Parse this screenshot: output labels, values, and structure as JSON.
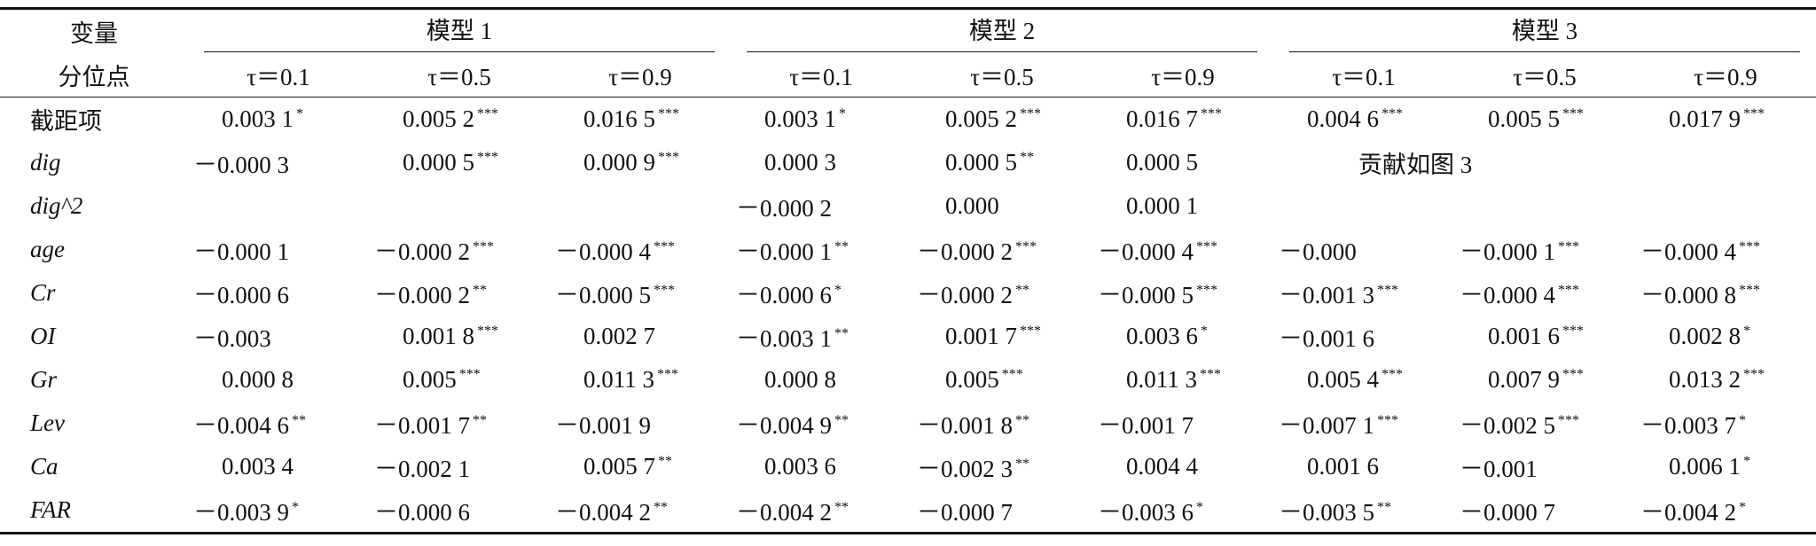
{
  "header": {
    "var": "变量",
    "quantile": "分位点",
    "models": [
      "模型 1",
      "模型 2",
      "模型 3"
    ],
    "taus": [
      "τ＝0.1",
      "τ＝0.5",
      "τ＝0.9"
    ]
  },
  "rows": [
    {
      "label": "截距项",
      "italic": false,
      "cells": [
        {
          "text": "0.003 1",
          "stars": "*"
        },
        {
          "text": "0.005 2",
          "stars": "***"
        },
        {
          "text": "0.016 5",
          "stars": "***"
        },
        {
          "text": "0.003 1",
          "stars": "*"
        },
        {
          "text": "0.005 2",
          "stars": "***"
        },
        {
          "text": "0.016 7",
          "stars": "***"
        },
        {
          "text": "0.004 6",
          "stars": "***"
        },
        {
          "text": "0.005 5",
          "stars": "***"
        },
        {
          "text": "0.017 9",
          "stars": "***"
        }
      ]
    },
    {
      "label": "dig",
      "italic": true,
      "cells": [
        "－0.000 3",
        {
          "text": "0.000 5",
          "stars": "***"
        },
        {
          "text": "0.000 9",
          "stars": "***"
        },
        "0.000 3",
        {
          "text": "0.000 5",
          "stars": "**"
        },
        "0.000 5"
      ],
      "span": "贡献如图 3"
    },
    {
      "label": "dig^2",
      "italic": true,
      "cells": [
        null,
        null,
        null,
        "－0.000 2",
        "0.000",
        "0.000 1",
        null,
        null,
        null
      ]
    },
    {
      "label": "age",
      "italic": true,
      "cells": [
        "－0.000 1",
        {
          "text": "－0.000 2",
          "stars": "***"
        },
        {
          "text": "－0.000 4",
          "stars": "***"
        },
        {
          "text": "－0.000 1",
          "stars": "**"
        },
        {
          "text": "－0.000 2",
          "stars": "***"
        },
        {
          "text": "－0.000 4",
          "stars": "***"
        },
        "－0.000",
        {
          "text": "－0.000 1",
          "stars": "***"
        },
        {
          "text": "－0.000 4",
          "stars": "***"
        }
      ]
    },
    {
      "label": "Cr",
      "italic": true,
      "cells": [
        "－0.000 6",
        {
          "text": "－0.000 2",
          "stars": "**"
        },
        {
          "text": "－0.000 5",
          "stars": "***"
        },
        {
          "text": "－0.000 6",
          "stars": "*"
        },
        {
          "text": "－0.000 2",
          "stars": "**"
        },
        {
          "text": "－0.000 5",
          "stars": "***"
        },
        {
          "text": "－0.001 3",
          "stars": "***"
        },
        {
          "text": "－0.000 4",
          "stars": "***"
        },
        {
          "text": "－0.000 8",
          "stars": "***"
        }
      ]
    },
    {
      "label": "OI",
      "italic": true,
      "cells": [
        "－0.003",
        {
          "text": "0.001 8",
          "stars": "***"
        },
        "0.002 7",
        {
          "text": "－0.003 1",
          "stars": "**"
        },
        {
          "text": "0.001 7",
          "stars": "***"
        },
        {
          "text": "0.003 6",
          "stars": "*"
        },
        "－0.001 6",
        {
          "text": "0.001 6",
          "stars": "***"
        },
        {
          "text": "0.002 8",
          "stars": "*"
        }
      ]
    },
    {
      "label": "Gr",
      "italic": true,
      "cells": [
        "0.000 8",
        {
          "text": "0.005",
          "stars": "***"
        },
        {
          "text": "0.011 3",
          "stars": "***"
        },
        "0.000 8",
        {
          "text": "0.005",
          "stars": "***"
        },
        {
          "text": "0.011 3",
          "stars": "***"
        },
        {
          "text": "0.005 4",
          "stars": "***"
        },
        {
          "text": "0.007 9",
          "stars": "***"
        },
        {
          "text": "0.013 2",
          "stars": "***"
        }
      ]
    },
    {
      "label": "Lev",
      "italic": true,
      "cells": [
        {
          "text": "－0.004 6",
          "stars": "**"
        },
        {
          "text": "－0.001 7",
          "stars": "**"
        },
        "－0.001 9",
        {
          "text": "－0.004 9",
          "stars": "**"
        },
        {
          "text": "－0.001 8",
          "stars": "**"
        },
        "－0.001 7",
        {
          "text": "－0.007 1",
          "stars": "***"
        },
        {
          "text": "－0.002 5",
          "stars": "***"
        },
        {
          "text": "－0.003 7",
          "stars": "*"
        }
      ]
    },
    {
      "label": "Ca",
      "italic": true,
      "cells": [
        "0.003 4",
        "－0.002 1",
        {
          "text": "0.005 7",
          "stars": "**"
        },
        "0.003 6",
        {
          "text": "－0.002 3",
          "stars": "**"
        },
        "0.004 4",
        "0.001 6",
        "－0.001",
        {
          "text": "0.006 1",
          "stars": "*"
        }
      ]
    },
    {
      "label": "FAR",
      "italic": true,
      "cells": [
        {
          "text": "－0.003 9",
          "stars": "*"
        },
        "－0.000 6",
        {
          "text": "－0.004 2",
          "stars": "**"
        },
        {
          "text": "－0.004 2",
          "stars": "**"
        },
        "－0.000 7",
        {
          "text": "－0.003 6",
          "stars": "*"
        },
        {
          "text": "－0.003 5",
          "stars": "**"
        },
        "－0.000 7",
        {
          "text": "－0.004 2",
          "stars": "*"
        }
      ]
    }
  ]
}
